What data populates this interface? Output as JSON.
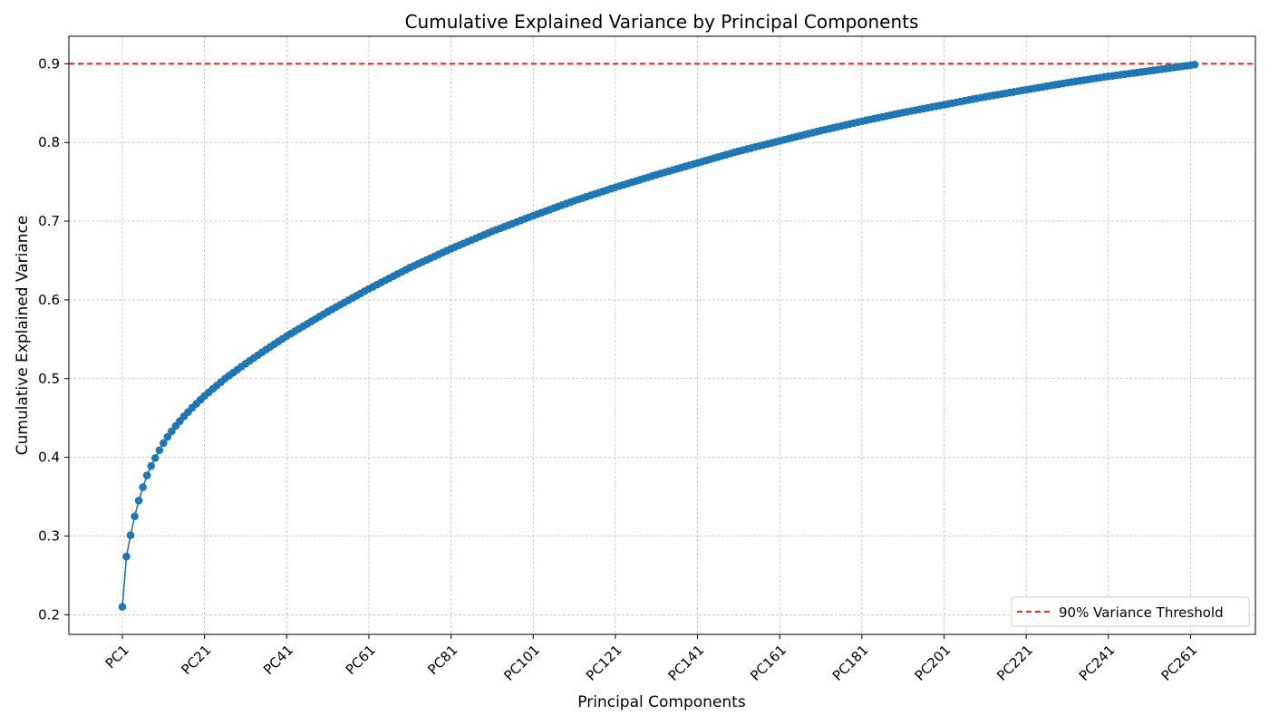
{
  "chart_data": {
    "type": "line",
    "title": "Cumulative Explained Variance by Principal Components",
    "xlabel": "Principal Components",
    "ylabel": "Cumulative Explained Variance",
    "x_tick_labels": [
      "PC1",
      "PC21",
      "PC41",
      "PC61",
      "PC81",
      "PC101",
      "PC121",
      "PC141",
      "PC161",
      "PC181",
      "PC201",
      "PC221",
      "PC241",
      "PC261"
    ],
    "y_ticks": [
      0.2,
      0.3,
      0.4,
      0.5,
      0.6,
      0.7,
      0.8,
      0.9
    ],
    "ylim": [
      0.175,
      0.935
    ],
    "grid": true,
    "legend_placement": "lower-right",
    "series": [
      {
        "component_count": 262,
        "color": "#1f77b4",
        "marker": "circle",
        "sample_points": [
          [
            1,
            0.21
          ],
          [
            2,
            0.274
          ],
          [
            3,
            0.301
          ],
          [
            4,
            0.325
          ],
          [
            5,
            0.345
          ],
          [
            6,
            0.362
          ],
          [
            7,
            0.377
          ],
          [
            8,
            0.389
          ],
          [
            9,
            0.399
          ],
          [
            10,
            0.409
          ],
          [
            11,
            0.418
          ],
          [
            12,
            0.426
          ],
          [
            13,
            0.433
          ],
          [
            14,
            0.44
          ],
          [
            16,
            0.452
          ],
          [
            18,
            0.463
          ],
          [
            21,
            0.478
          ],
          [
            26,
            0.5
          ],
          [
            31,
            0.519
          ],
          [
            36,
            0.537
          ],
          [
            41,
            0.554
          ],
          [
            51,
            0.585
          ],
          [
            61,
            0.614
          ],
          [
            71,
            0.641
          ],
          [
            81,
            0.665
          ],
          [
            91,
            0.687
          ],
          [
            101,
            0.707
          ],
          [
            111,
            0.726
          ],
          [
            121,
            0.743
          ],
          [
            131,
            0.759
          ],
          [
            141,
            0.774
          ],
          [
            151,
            0.789
          ],
          [
            161,
            0.802
          ],
          [
            171,
            0.815
          ],
          [
            181,
            0.827
          ],
          [
            191,
            0.838
          ],
          [
            201,
            0.848
          ],
          [
            211,
            0.858
          ],
          [
            221,
            0.867
          ],
          [
            231,
            0.876
          ],
          [
            241,
            0.884
          ],
          [
            251,
            0.891
          ],
          [
            262,
            0.899
          ]
        ]
      }
    ],
    "threshold": {
      "value": 0.9,
      "label": "90% Variance Threshold",
      "color": "#ff0000",
      "style": "dashed"
    }
  }
}
